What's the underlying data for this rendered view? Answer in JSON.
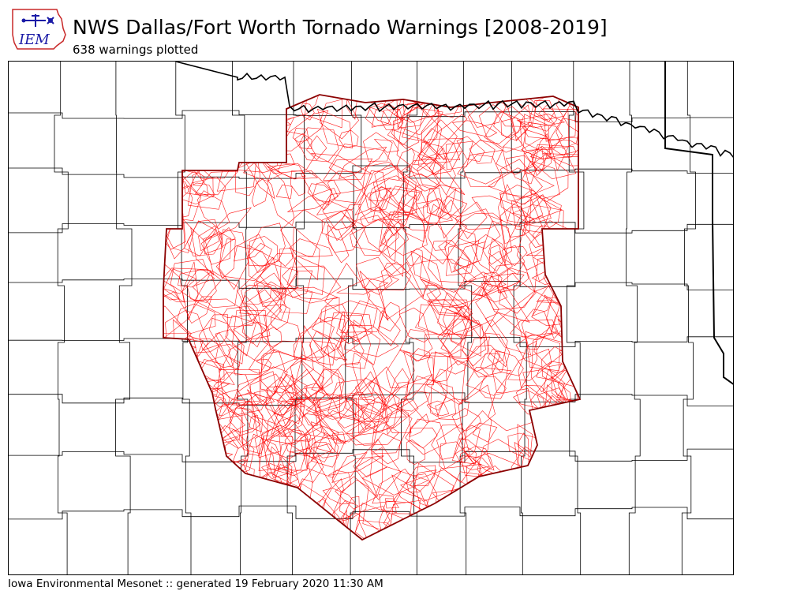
{
  "header": {
    "logo_text": "IEM",
    "title": "NWS Dallas/Fort Worth Tornado Warnings [2008-2019]",
    "subtitle": "638 warnings plotted"
  },
  "footer": {
    "credit": "Iowa Environmental Mesonet :: generated 19 February 2020 11:30 AM"
  },
  "map": {
    "warning_count": 638,
    "colors": {
      "warning_polygon": "#ff0000",
      "cwa_boundary": "#8b0000",
      "county_line": "#000000",
      "state_line": "#000000",
      "background": "#ffffff",
      "logo": "#1a1aa6",
      "logo_outline": "#c82828"
    },
    "icons": [
      "iem-logo-icon"
    ]
  }
}
